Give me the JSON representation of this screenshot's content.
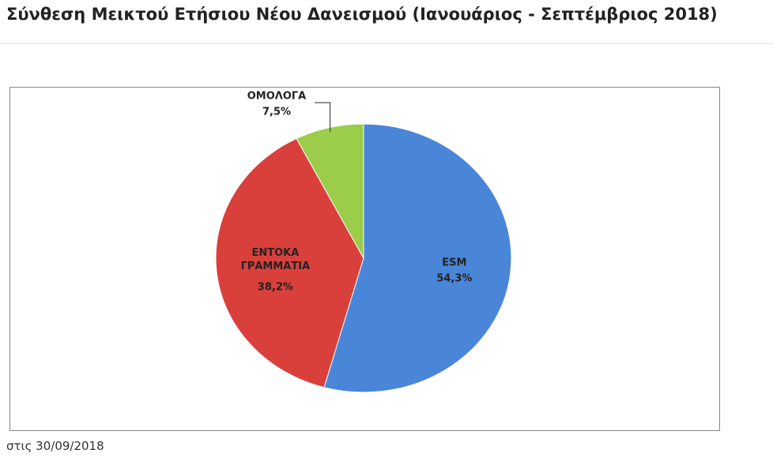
{
  "page_title": "Σύνθεση Μεικτού Ετήσιου Νέου Δανεισμού (Ιανουάριος - Σεπτέμβριος 2018)",
  "footnote": "στις 30/09/2018",
  "chart_data": {
    "type": "pie",
    "categories": [
      "ESM",
      "ΕΝΤΟΚΑ ΓΡΑΜΜΑΤΙΑ",
      "ΟΜΟΛΟΓΑ"
    ],
    "values": [
      54.3,
      38.2,
      7.5
    ],
    "value_labels": [
      "54,3%",
      "38,2%",
      "7,5%"
    ],
    "colors": [
      "#4a86d8",
      "#d9403c",
      "#9bcc4a"
    ]
  }
}
